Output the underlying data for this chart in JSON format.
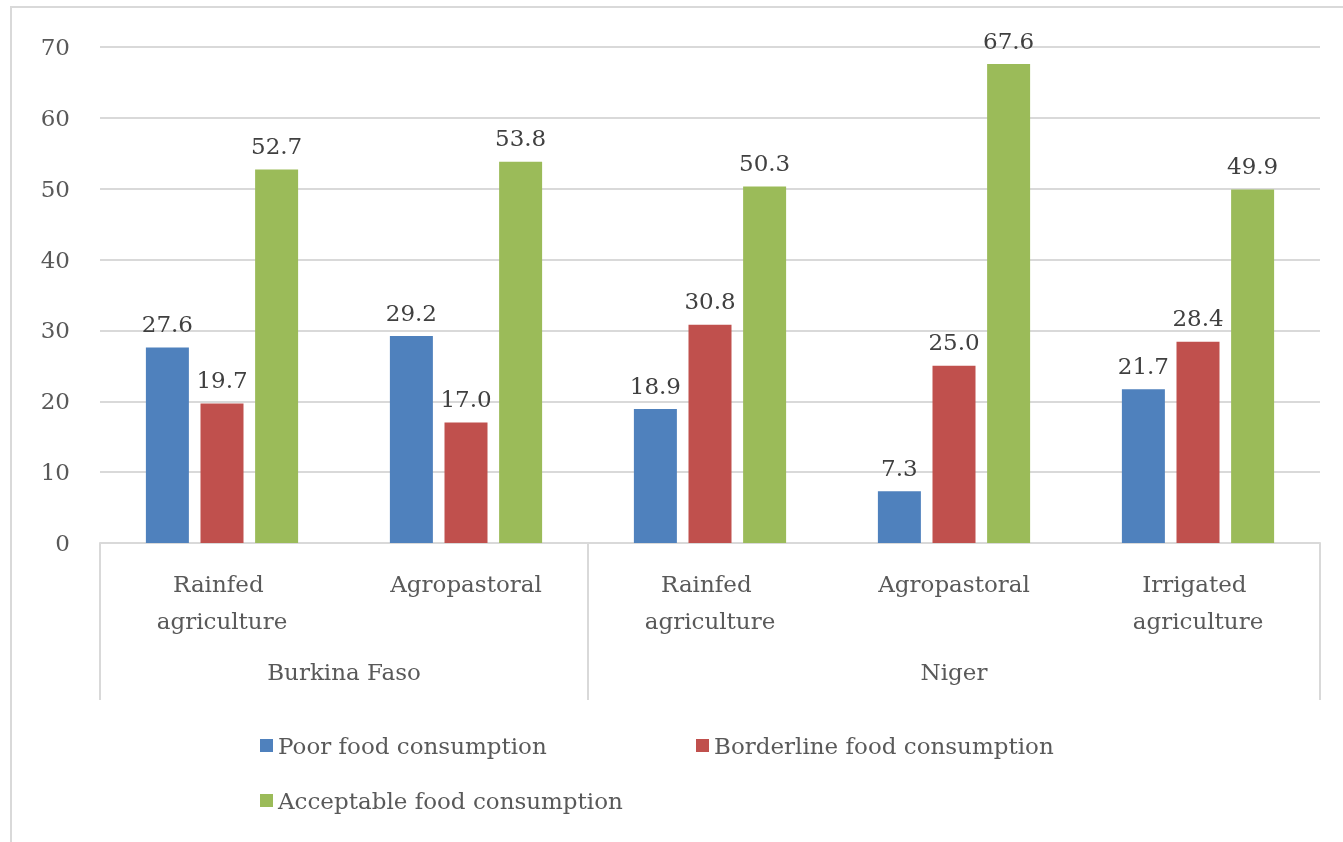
{
  "chart_data": {
    "type": "bar",
    "categories": [
      "Rainfed agriculture",
      "Agropastoral",
      "Rainfed agriculture",
      "Agropastoral",
      "Irrigated agriculture"
    ],
    "series": [
      {
        "name": "Poor food consumption",
        "color": "#4f81bd",
        "values": [
          27.6,
          29.2,
          18.9,
          7.3,
          21.7
        ],
        "value_labels": [
          "27.6",
          "29.2",
          "18.9",
          "7.3",
          "21.7"
        ]
      },
      {
        "name": "Borderline food consumption",
        "color": "#c0504d",
        "values": [
          19.7,
          17.0,
          30.8,
          25.0,
          28.4
        ],
        "value_labels": [
          "19.7",
          "17.0",
          "30.8",
          "25.0",
          "28.4"
        ]
      },
      {
        "name": "Acceptable food consumption",
        "color": "#9bbb59",
        "values": [
          52.7,
          53.8,
          50.3,
          67.6,
          49.9
        ],
        "value_labels": [
          "52.7",
          "53.8",
          "50.3",
          "67.6",
          "49.9"
        ]
      }
    ],
    "annotations": [
      "Burkina Faso",
      "Niger"
    ],
    "ylim": [
      0,
      70
    ],
    "yticks": [
      0,
      10,
      20,
      30,
      40,
      50,
      60,
      70
    ],
    "grid": "y",
    "legend": "bottom"
  }
}
